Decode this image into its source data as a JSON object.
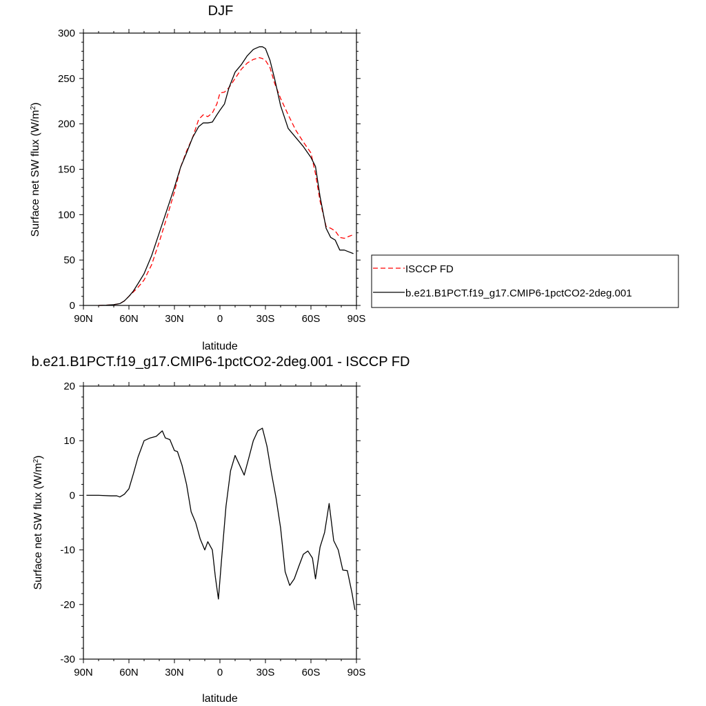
{
  "chart_data": [
    {
      "type": "line",
      "title": "DJF",
      "xlabel": "latitude",
      "ylabel_main": "Surface net SW flux (W/m",
      "ylabel_sup": "2",
      "ylabel_close": ")",
      "xlim": [
        -90,
        90
      ],
      "ylim": [
        0,
        300
      ],
      "xticks": [
        -90,
        -60,
        -30,
        0,
        30,
        60,
        90
      ],
      "xtick_labels": [
        "90N",
        "60N",
        "30N",
        "0",
        "30S",
        "60S",
        "90S"
      ],
      "yticks": [
        0,
        50,
        100,
        150,
        200,
        250,
        300
      ],
      "ytick_labels": [
        "0",
        "50",
        "100",
        "150",
        "200",
        "250",
        "300"
      ],
      "legend_position": "right",
      "series": [
        {
          "name": "ISCCP FD",
          "color": "#ff0000",
          "dash": "dashed",
          "x": [
            -80,
            -75,
            -70,
            -66,
            -63,
            -60,
            -57,
            -54,
            -50,
            -45,
            -40,
            -35,
            -30,
            -26,
            -22,
            -18,
            -14,
            -11,
            -8,
            -5,
            -2,
            0,
            3,
            6,
            10,
            14,
            18,
            22,
            26,
            28,
            30,
            33,
            36,
            40,
            45,
            50,
            55,
            60,
            63,
            66,
            70,
            73,
            76,
            79,
            82,
            85,
            88
          ],
          "y": [
            0,
            0.2,
            0.8,
            2,
            5,
            10,
            15,
            20,
            28,
            45,
            70,
            97,
            125,
            152,
            170,
            185,
            205,
            210,
            208,
            212,
            222,
            234,
            235,
            240,
            250,
            260,
            267,
            271,
            273,
            272,
            270,
            262,
            245,
            228,
            210,
            193,
            180,
            168,
            145,
            115,
            87,
            85,
            82,
            75,
            74,
            76,
            78
          ]
        },
        {
          "name": "b.e21.B1PCT.f19_g17.CMIP6-1pctCO2-2deg.001",
          "color": "#000000",
          "dash": "solid",
          "x": [
            -80,
            -75,
            -70,
            -66,
            -63,
            -60,
            -57,
            -54,
            -50,
            -45,
            -40,
            -35,
            -30,
            -26,
            -22,
            -18,
            -14,
            -11,
            -8,
            -5,
            -2,
            0,
            3,
            6,
            10,
            14,
            18,
            22,
            26,
            28,
            30,
            33,
            36,
            40,
            45,
            50,
            55,
            60,
            63,
            66,
            70,
            73,
            76,
            79,
            82,
            85,
            88
          ],
          "y": [
            0,
            0.2,
            0.8,
            2,
            5,
            10,
            16,
            24,
            35,
            55,
            80,
            105,
            130,
            152,
            168,
            185,
            197,
            201,
            201,
            202,
            210,
            215,
            222,
            240,
            257,
            265,
            275,
            282,
            285,
            285,
            283,
            270,
            250,
            220,
            195,
            185,
            175,
            163,
            153,
            120,
            85,
            75,
            72,
            61,
            61,
            59,
            57
          ]
        }
      ]
    },
    {
      "type": "line",
      "title": "b.e21.B1PCT.f19_g17.CMIP6-1pctCO2-2deg.001 - ISCCP FD",
      "xlabel": "latitude",
      "ylabel_main": "Surface net SW flux (W/m",
      "ylabel_sup": "2",
      "ylabel_close": ")",
      "xlim": [
        -90,
        90
      ],
      "ylim": [
        -30,
        20
      ],
      "xticks": [
        -90,
        -60,
        -30,
        0,
        30,
        60,
        90
      ],
      "xtick_labels": [
        "90N",
        "60N",
        "30N",
        "0",
        "30S",
        "60S",
        "90S"
      ],
      "yticks": [
        -30,
        -20,
        -10,
        0,
        10,
        20
      ],
      "ytick_labels": [
        "-30",
        "-20",
        "-10",
        "0",
        "10",
        "20"
      ],
      "series": [
        {
          "color": "#000000",
          "dash": "solid",
          "x": [
            -88,
            -80,
            -72,
            -68,
            -66,
            -63,
            -60,
            -57,
            -54,
            -50,
            -46,
            -42,
            -38,
            -36,
            -33,
            -30,
            -28,
            -25,
            -22,
            -19,
            -16,
            -13,
            -10,
            -8,
            -5,
            -3,
            -1,
            1,
            4,
            7,
            10,
            13,
            16,
            19,
            22,
            25,
            28,
            31,
            34,
            37,
            40,
            43,
            46,
            49,
            52,
            55,
            58,
            61,
            63,
            66,
            69,
            72,
            75,
            78,
            81,
            84,
            87,
            89
          ],
          "y": [
            0,
            0,
            -0.1,
            -0.1,
            -0.3,
            0.2,
            1.2,
            4,
            7,
            10,
            10.5,
            10.8,
            11.8,
            10.5,
            10.2,
            8.2,
            8,
            5.5,
            2,
            -3,
            -5,
            -8,
            -10,
            -8.5,
            -10,
            -15,
            -19,
            -12,
            -2,
            4.5,
            7.3,
            5.5,
            3.7,
            6.8,
            10,
            11.8,
            12.3,
            9,
            4,
            -0.5,
            -6,
            -14,
            -16.5,
            -15.3,
            -13,
            -10.8,
            -10.2,
            -11.5,
            -15.3,
            -9.5,
            -6.8,
            -1.5,
            -8.3,
            -10,
            -13.7,
            -13.8,
            -17.8,
            -21
          ]
        }
      ]
    }
  ]
}
